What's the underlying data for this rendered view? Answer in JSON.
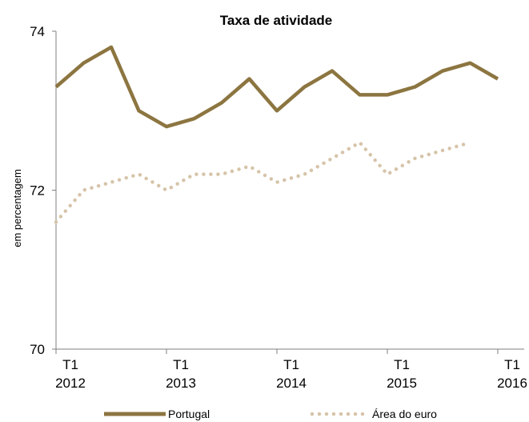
{
  "chart_data": {
    "type": "line",
    "title": "Taxa de atividade",
    "ylabel": "em percentagem",
    "xlabel": "",
    "ylim": [
      70,
      74
    ],
    "yticks": [
      70,
      72,
      74
    ],
    "xlim": [
      0,
      16
    ],
    "xticks": [
      {
        "pos": 0,
        "quarter": "T1",
        "year": "2012"
      },
      {
        "pos": 4,
        "quarter": "T1",
        "year": "2013"
      },
      {
        "pos": 8,
        "quarter": "T1",
        "year": "2014"
      },
      {
        "pos": 12,
        "quarter": "T1",
        "year": "2015"
      },
      {
        "pos": 16,
        "quarter": "T1",
        "year": "2016"
      }
    ],
    "legend_position": "bottom",
    "grid": false,
    "series": [
      {
        "name": "Portugal",
        "color": "#8C7540",
        "style": "solid",
        "x": [
          0,
          1,
          2,
          3,
          4,
          5,
          6,
          7,
          8,
          9,
          10,
          11,
          12,
          13,
          14,
          15,
          16
        ],
        "values": [
          73.3,
          73.6,
          73.8,
          73.0,
          72.8,
          72.9,
          73.1,
          73.4,
          73.0,
          73.3,
          73.5,
          73.2,
          73.2,
          73.3,
          73.5,
          73.6,
          73.4
        ]
      },
      {
        "name": "Área do euro",
        "color": "#D6C4A9",
        "style": "dotted",
        "x": [
          0,
          1,
          2,
          3,
          4,
          5,
          6,
          7,
          8,
          9,
          10,
          11,
          12,
          13,
          14,
          15
        ],
        "values": [
          71.6,
          72.0,
          72.1,
          72.2,
          72.0,
          72.2,
          72.2,
          72.3,
          72.1,
          72.2,
          72.4,
          72.6,
          72.2,
          72.4,
          72.5,
          72.6
        ]
      }
    ]
  }
}
